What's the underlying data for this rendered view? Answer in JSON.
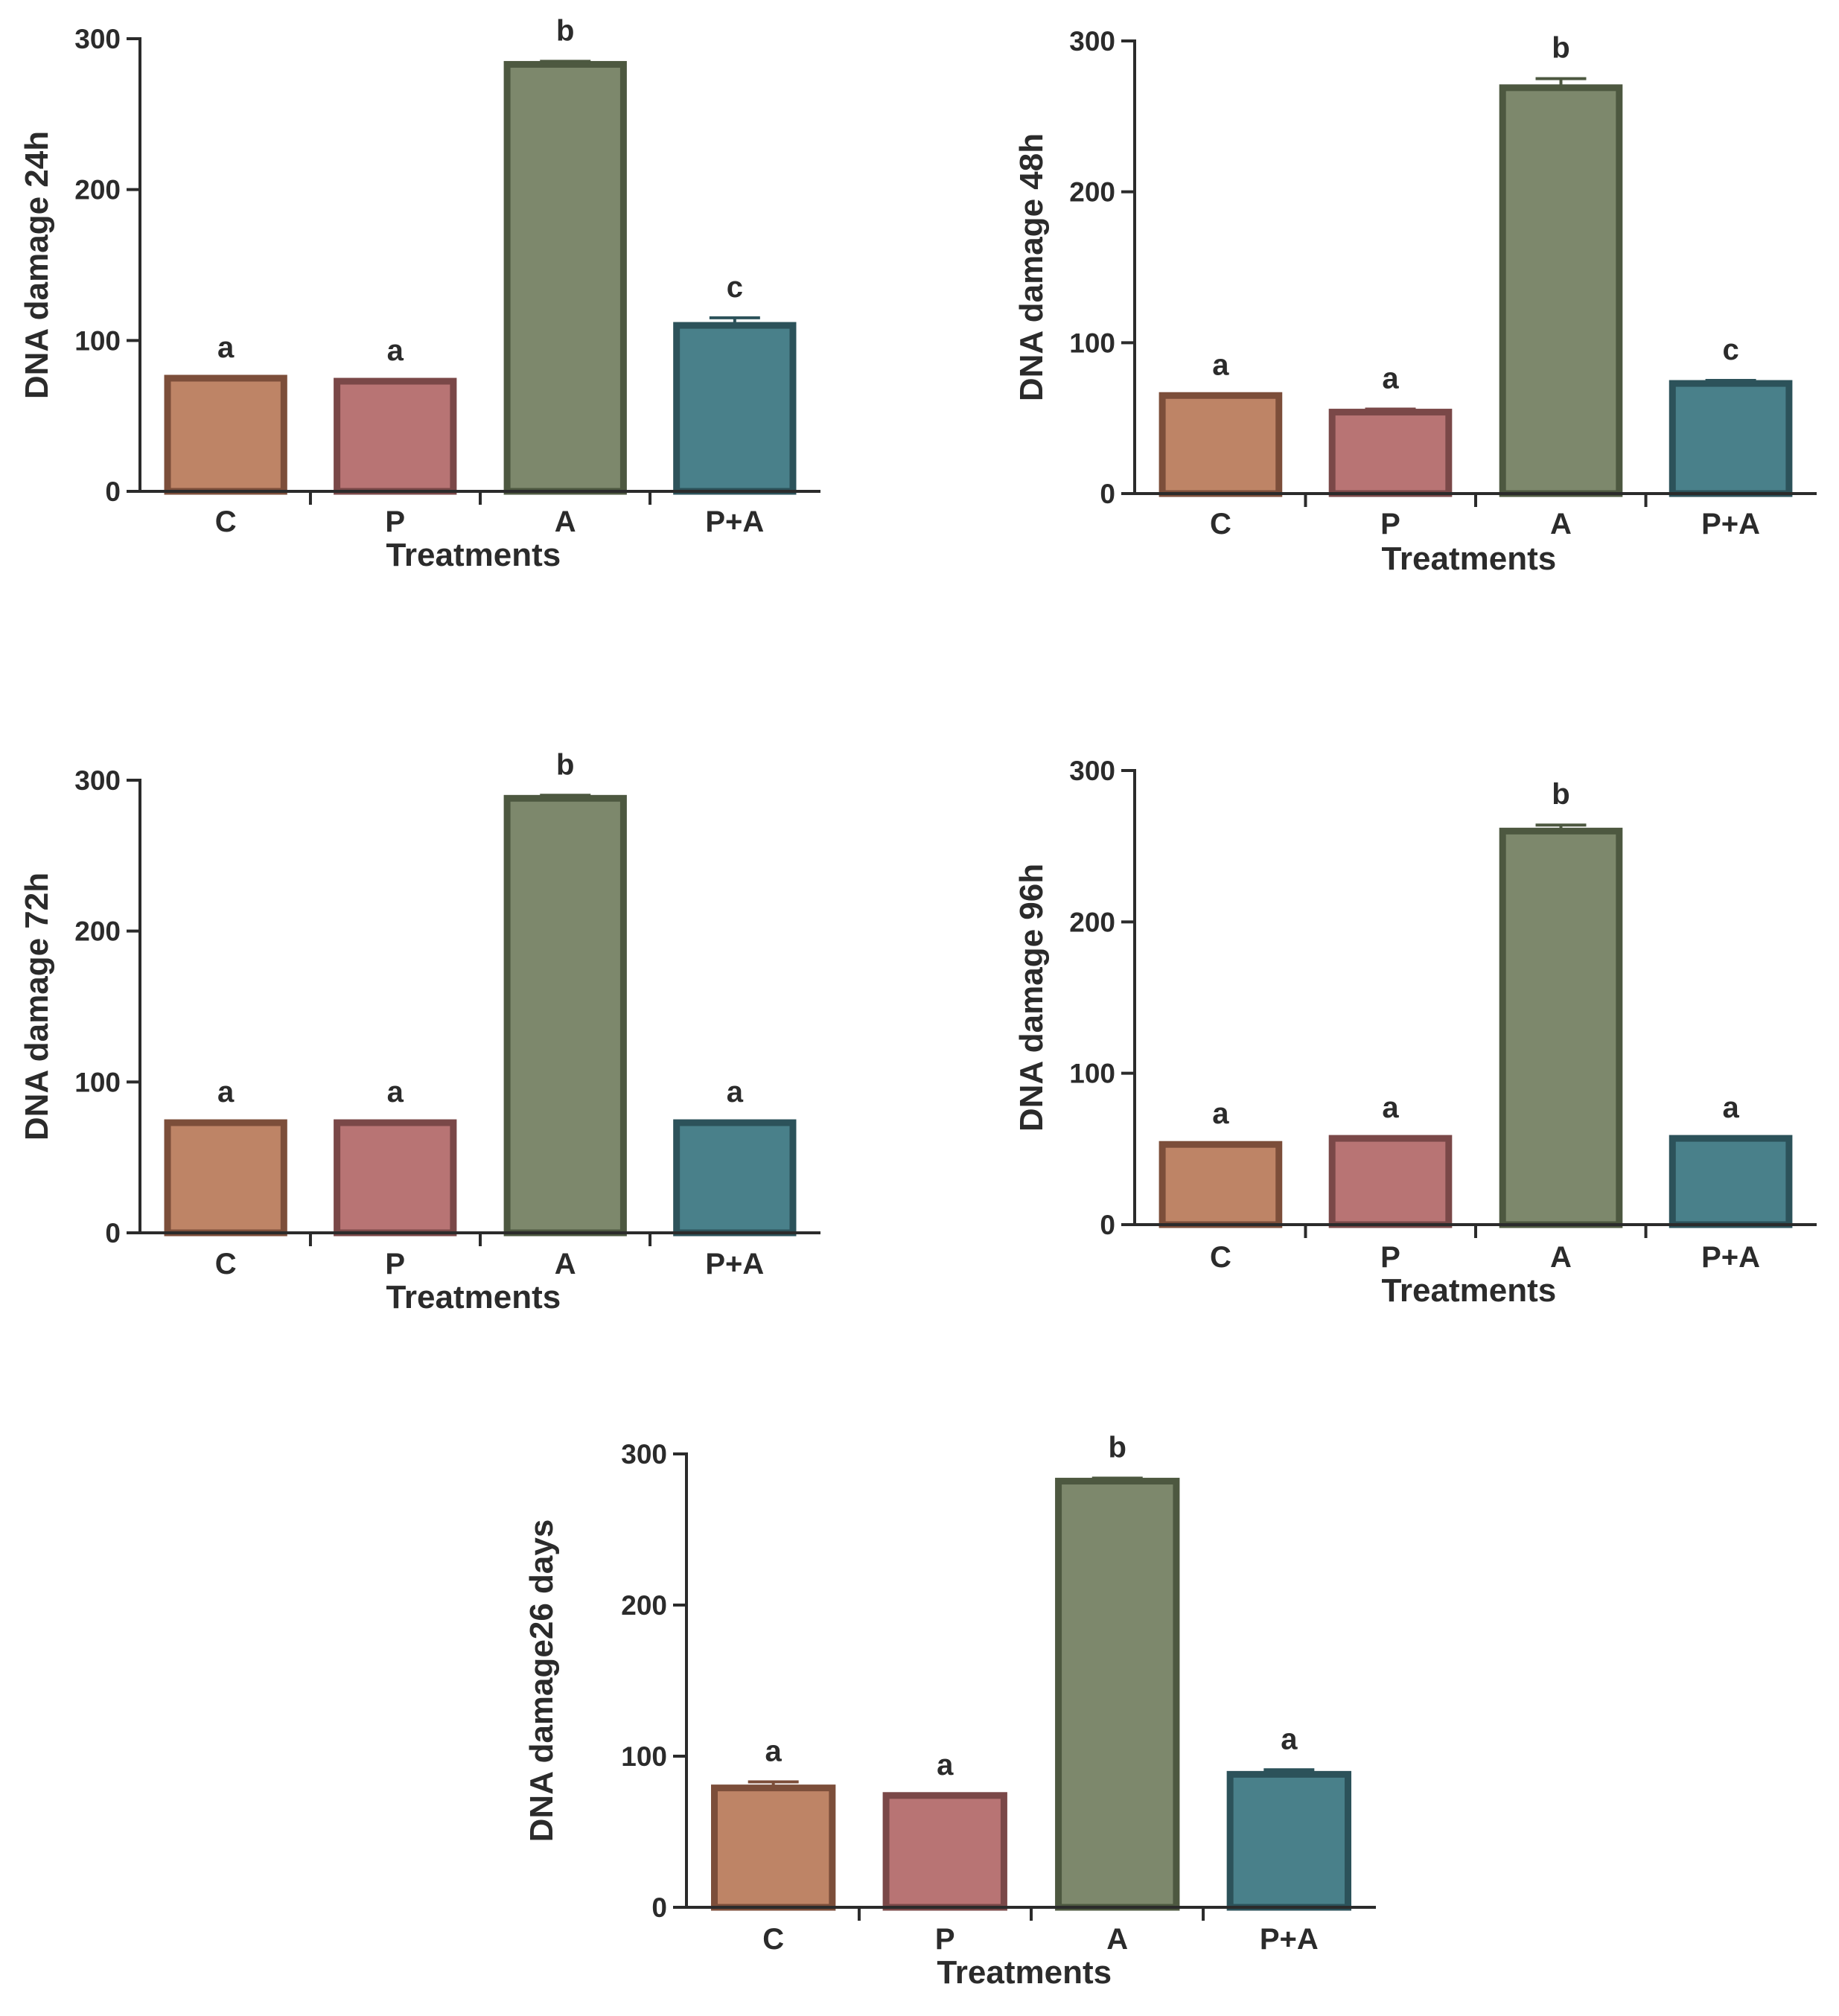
{
  "colors": {
    "C": {
      "fill": "#BE8466",
      "stroke": "#7C4E3A"
    },
    "P": {
      "fill": "#B87474",
      "stroke": "#7A4848"
    },
    "A": {
      "fill": "#7D886C",
      "stroke": "#4D5840"
    },
    "P+A": {
      "fill": "#49808A",
      "stroke": "#2C525A"
    },
    "axis": "#2b2b2b"
  },
  "chart_data": [
    {
      "type": "bar",
      "title": "",
      "xlabel": "Treatments",
      "ylabel": "DNA damage 24h",
      "categories": [
        "C",
        "P",
        "A",
        "P+A"
      ],
      "values": [
        75,
        73,
        283,
        110
      ],
      "errors": [
        0,
        0,
        2,
        5
      ],
      "significance": [
        "a",
        "a",
        "b",
        "c"
      ],
      "ylim": [
        0,
        300
      ],
      "yticks": [
        0,
        100,
        200,
        300
      ]
    },
    {
      "type": "bar",
      "title": "",
      "xlabel": "Treatments",
      "ylabel": "DNA damage 48h",
      "categories": [
        "C",
        "P",
        "A",
        "P+A"
      ],
      "values": [
        65,
        54,
        269,
        73
      ],
      "errors": [
        0,
        2,
        6,
        2
      ],
      "significance": [
        "a",
        "a",
        "b",
        "c"
      ],
      "ylim": [
        0,
        300
      ],
      "yticks": [
        0,
        100,
        200,
        300
      ]
    },
    {
      "type": "bar",
      "title": "",
      "xlabel": "Treatments",
      "ylabel": "DNA damage 72h",
      "categories": [
        "C",
        "P",
        "A",
        "P+A"
      ],
      "values": [
        73,
        73,
        288,
        73
      ],
      "errors": [
        0,
        0,
        2,
        0
      ],
      "significance": [
        "a",
        "a",
        "b",
        "a"
      ],
      "ylim": [
        0,
        300
      ],
      "yticks": [
        0,
        100,
        200,
        300
      ]
    },
    {
      "type": "bar",
      "title": "",
      "xlabel": "Treatments",
      "ylabel": "DNA damage 96h",
      "categories": [
        "C",
        "P",
        "A",
        "P+A"
      ],
      "values": [
        53,
        57,
        260,
        57
      ],
      "errors": [
        0,
        0,
        4,
        0
      ],
      "significance": [
        "a",
        "a",
        "b",
        "a"
      ],
      "ylim": [
        0,
        300
      ],
      "yticks": [
        0,
        100,
        200,
        300
      ]
    },
    {
      "type": "bar",
      "title": "",
      "xlabel": "Treatments",
      "ylabel": "DNA damage26 days",
      "categories": [
        "C",
        "P",
        "A",
        "P+A"
      ],
      "values": [
        79,
        74,
        282,
        88
      ],
      "errors": [
        4,
        0,
        2,
        3
      ],
      "significance": [
        "a",
        "a",
        "b",
        "a"
      ],
      "ylim": [
        0,
        300
      ],
      "yticks": [
        0,
        100,
        200,
        300
      ]
    }
  ]
}
